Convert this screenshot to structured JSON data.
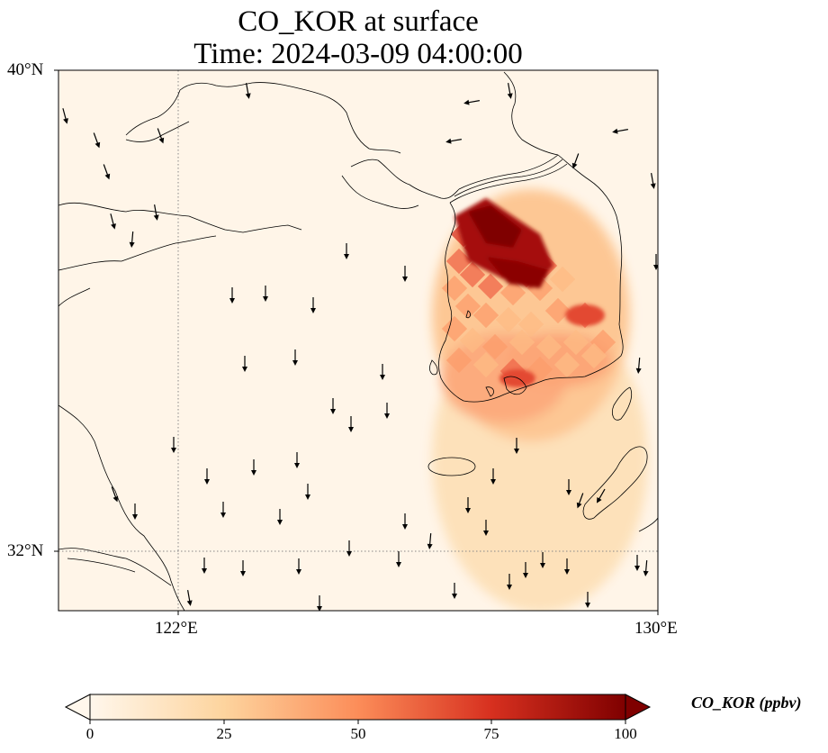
{
  "title": {
    "line1": "CO_KOR at surface",
    "line2": "Time: 2024-03-09 04:00:00"
  },
  "axes": {
    "lat_ticks": [
      {
        "value": 40,
        "label": "40°N"
      },
      {
        "value": 32,
        "label": "32°N"
      }
    ],
    "lon_ticks": [
      {
        "value": 122,
        "label": "122°E"
      },
      {
        "value": 130,
        "label": "130°E"
      }
    ],
    "extent": {
      "lon_min": 120,
      "lon_max": 130,
      "lat_min": 31,
      "lat_max": 40
    },
    "gridlines": "dotted"
  },
  "colorbar": {
    "label": "CO_KOR (ppbv)",
    "ticks": [
      "0",
      "25",
      "50",
      "75",
      "100"
    ],
    "min": 0,
    "max": 100,
    "extend": "both",
    "colormap": "OrRd",
    "colors": [
      "#fff7ec",
      "#fdd49e",
      "#fc8d59",
      "#d7301f",
      "#7f0000"
    ]
  },
  "map": {
    "background": "#fff5e8",
    "coastline_color": "#000000"
  }
}
